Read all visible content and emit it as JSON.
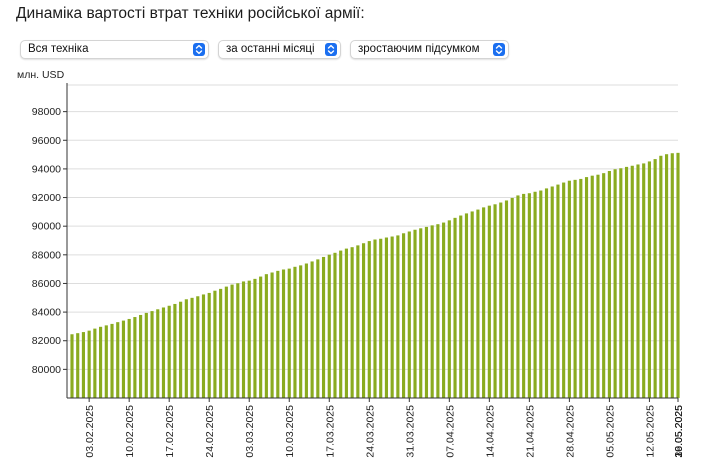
{
  "title": "Динаміка вартості втрат техніки російської армії:",
  "controls": {
    "equipment": "Вся техніка",
    "period": "за останні місяці",
    "mode": "зростаючим підсумком",
    "accent": "#1b6ff0"
  },
  "icons": {
    "select_arrow": "chevron-up-down-icon"
  },
  "chart_data": {
    "type": "bar",
    "ylabel": "млн. USD",
    "ylim": [
      78000,
      100000
    ],
    "yticks": [
      80000,
      82000,
      84000,
      86000,
      88000,
      90000,
      92000,
      94000,
      96000,
      98000
    ],
    "grid": true,
    "bar_color": "#8aab1f",
    "x_start": "2025-01-31",
    "x_end": "2025-05-30",
    "xtick_labels": [
      "03.02.2025",
      "10.02.2025",
      "17.02.2025",
      "24.02.2025",
      "03.03.2025",
      "10.03.2025",
      "17.03.2025",
      "24.03.2025",
      "31.03.2025",
      "07.04.2025",
      "14.04.2025",
      "21.04.2025",
      "28.04.2025",
      "05.05.2025",
      "12.05.2025",
      "19.05.2025",
      "26.05.2025",
      "30.05.2025"
    ],
    "values": [
      82452,
      82528,
      82604,
      82704,
      82846,
      82972,
      83073,
      83175,
      83297,
      83406,
      83521,
      83654,
      83799,
      83943,
      84069,
      84196,
      84322,
      84443,
      84568,
      84725,
      84895,
      84996,
      85106,
      85232,
      85338,
      85494,
      85622,
      85779,
      85921,
      86014,
      86141,
      86196,
      86320,
      86481,
      86649,
      86765,
      86880,
      86975,
      87036,
      87163,
      87263,
      87393,
      87537,
      87682,
      87851,
      88009,
      88141,
      88296,
      88434,
      88533,
      88660,
      88809,
      88959,
      89069,
      89122,
      89208,
      89278,
      89356,
      89504,
      89629,
      89751,
      89852,
      89949,
      90057,
      90138,
      90253,
      90408,
      90582,
      90745,
      90892,
      91029,
      91160,
      91313,
      91433,
      91529,
      91652,
      91796,
      91972,
      92148,
      92255,
      92302,
      92404,
      92490,
      92638,
      92772,
      92905,
      93048,
      93176,
      93236,
      93301,
      93428,
      93527,
      93595,
      93703,
      93853,
      93976,
      94046,
      94141,
      94220,
      94310,
      94384,
      94522,
      94686,
      94917,
      95027,
      95095,
      95122
    ]
  }
}
